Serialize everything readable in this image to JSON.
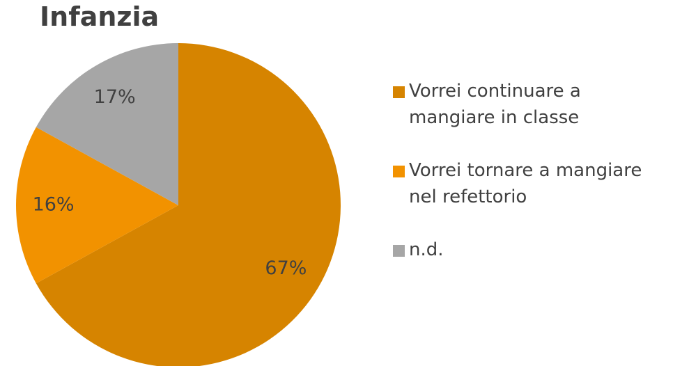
{
  "chart_data": {
    "type": "pie",
    "title": "Infanzia",
    "categories": [
      "Vorrei continuare a mangiare in classe",
      "Vorrei tornare a mangiare nel refettorio",
      "n.d."
    ],
    "values": [
      67,
      16,
      17
    ],
    "value_labels": [
      "67%",
      "16%",
      "17%"
    ],
    "colors": [
      "#d68400",
      "#f29200",
      "#a6a6a6"
    ],
    "legend": "right"
  }
}
